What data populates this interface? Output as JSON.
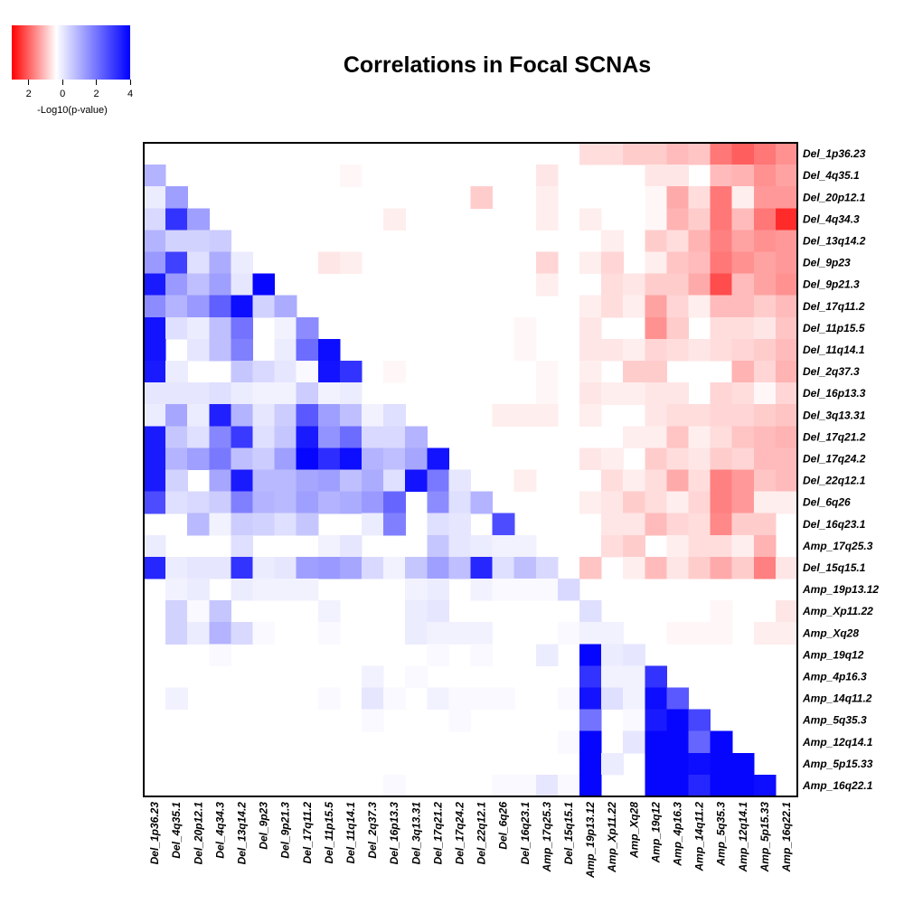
{
  "chart_data": {
    "type": "heatmap",
    "title": "Correlations in Focal SCNAs",
    "legend": {
      "label": "-Log10(p-value)",
      "ticks": [
        "2",
        "0",
        "2",
        "4"
      ],
      "tick_values": [
        -2,
        0,
        2,
        4
      ],
      "range": [
        -3,
        4
      ],
      "colors": {
        "negative": "#ff0000",
        "zero": "#ffffff",
        "positive": "#0000ff"
      }
    },
    "row_labels": [
      "Del_1p36.23",
      "Del_4q35.1",
      "Del_20p12.1",
      "Del_4q34.3",
      "Del_13q14.2",
      "Del_9p23",
      "Del_9p21.3",
      "Del_17q11.2",
      "Del_11p15.5",
      "Del_11q14.1",
      "Del_2q37.3",
      "Del_16p13.3",
      "Del_3q13.31",
      "Del_17q21.2",
      "Del_17q24.2",
      "Del_22q12.1",
      "Del_6q26",
      "Del_16q23.1",
      "Amp_17q25.3",
      "Del_15q15.1",
      "Amp_19p13.12",
      "Amp_Xp11.22",
      "Amp_Xq28",
      "Amp_19q12",
      "Amp_4p16.3",
      "Amp_14q11.2",
      "Amp_5q35.3",
      "Amp_12q14.1",
      "Amp_5p15.33",
      "Amp_16q22.1"
    ],
    "column_labels": [
      "Del_1p36.23",
      "Del_4q35.1",
      "Del_20p12.1",
      "Del_4q34.3",
      "Del_13q14.2",
      "Del_9p23",
      "Del_9p21.3",
      "Del_17q11.2",
      "Del_11p15.5",
      "Del_11q14.1",
      "Del_2q37.3",
      "Del_16p13.3",
      "Del_3q13.31",
      "Del_17q21.2",
      "Del_17q24.2",
      "Del_22q12.1",
      "Del_6q26",
      "Del_16q23.1",
      "Amp_17q25.3",
      "Del_15q15.1",
      "Amp_19p13.12",
      "Amp_Xp11.22",
      "Amp_Xq28",
      "Amp_19q12",
      "Amp_4p16.3",
      "Amp_14q11.2",
      "Amp_5q35.3",
      "Amp_12q14.1",
      "Amp_5p15.33",
      "Amp_16q22.1"
    ],
    "matrix": [
      [
        0,
        0,
        0,
        0,
        0,
        0,
        0,
        0,
        0,
        0,
        0,
        0,
        0,
        0,
        0,
        0,
        0,
        0,
        0,
        0,
        -0.4,
        -0.4,
        -0.6,
        -0.6,
        -0.8,
        -0.7,
        -1.6,
        -1.9,
        -1.6,
        -1.3
      ],
      [
        1.2,
        0,
        0,
        0,
        0,
        0,
        0,
        0,
        0,
        -0.1,
        0,
        0,
        0,
        0,
        0,
        0,
        0,
        0,
        -0.3,
        0,
        0,
        0,
        0,
        -0.3,
        -0.3,
        0,
        -0.8,
        -0.9,
        -1.3,
        -1.1
      ],
      [
        0.3,
        1.5,
        0,
        0,
        0,
        0,
        0,
        0,
        0,
        0,
        0,
        0,
        0,
        0,
        0,
        -0.6,
        0,
        0,
        -0.2,
        0,
        0,
        0,
        0,
        -0.1,
        -1.0,
        -0.4,
        -1.6,
        -0.2,
        -1.2,
        -1.2
      ],
      [
        0.6,
        3.2,
        1.5,
        0,
        0,
        0,
        0,
        0,
        0,
        0,
        0,
        -0.2,
        0,
        0,
        0,
        0,
        0,
        0,
        -0.2,
        0,
        -0.2,
        0,
        0,
        -0.1,
        -0.9,
        -0.6,
        -1.6,
        -0.8,
        -1.6,
        -2.5
      ],
      [
        1.2,
        0.7,
        0.7,
        0.8,
        0,
        0,
        0,
        0,
        0,
        0,
        0,
        0,
        0,
        0,
        0,
        0,
        0,
        0,
        0,
        0,
        0,
        -0.2,
        0,
        -0.6,
        -0.4,
        -0.9,
        -1.5,
        -1.1,
        -1.3,
        -1.2
      ],
      [
        1.6,
        3.0,
        0.5,
        1.3,
        0.3,
        0,
        0,
        0,
        -0.3,
        -0.2,
        0,
        0,
        0,
        0,
        0,
        0,
        0,
        0,
        -0.5,
        0,
        -0.2,
        -0.5,
        0,
        -0.2,
        -0.7,
        -0.8,
        -1.6,
        -1.3,
        -1.1,
        -1.2
      ],
      [
        3.6,
        1.6,
        1.0,
        1.5,
        0.4,
        3.9,
        0,
        0,
        0,
        0,
        0,
        0,
        0,
        0,
        0,
        0,
        0,
        0,
        -0.2,
        0,
        0,
        -0.4,
        -0.3,
        -0.6,
        -0.6,
        -1.0,
        -2.1,
        -0.8,
        -1.1,
        -1.3
      ],
      [
        1.8,
        1.2,
        1.6,
        2.5,
        3.8,
        0.7,
        1.3,
        0,
        0,
        0,
        0,
        0,
        0,
        0,
        0,
        0,
        0,
        0,
        0,
        0,
        -0.2,
        -0.4,
        -0.2,
        -1.1,
        -0.5,
        -0.2,
        -0.8,
        -0.8,
        -0.6,
        -0.8
      ],
      [
        3.7,
        0.5,
        0.3,
        1.0,
        2.2,
        0,
        0.2,
        1.8,
        0,
        0,
        0,
        0,
        0,
        0,
        0,
        0,
        0,
        -0.1,
        0,
        0,
        -0.3,
        0,
        0,
        -1.3,
        -0.6,
        0,
        -0.4,
        -0.4,
        -0.3,
        -0.7
      ],
      [
        3.7,
        0,
        0.4,
        1.0,
        2.0,
        0,
        0.3,
        2.3,
        3.8,
        0,
        0,
        0,
        0,
        0,
        0,
        0,
        0,
        -0.1,
        0,
        0,
        -0.3,
        -0.3,
        -0.2,
        -0.5,
        -0.4,
        -0.3,
        -0.4,
        -0.5,
        -0.6,
        -0.8
      ],
      [
        3.6,
        0.3,
        0,
        0,
        0.9,
        0.6,
        0.4,
        0.1,
        3.7,
        3.2,
        0,
        -0.1,
        0,
        0,
        0,
        0,
        0,
        0,
        -0.1,
        0,
        -0.2,
        0,
        -0.6,
        -0.6,
        0,
        0,
        0,
        -0.9,
        -0.5,
        -0.9
      ],
      [
        0.4,
        0.4,
        0.4,
        0.5,
        0.3,
        0.2,
        0.2,
        0.8,
        0.2,
        0.3,
        0,
        0,
        0,
        0,
        0,
        0,
        0,
        0,
        -0.1,
        0,
        -0.3,
        -0.2,
        -0.2,
        -0.3,
        -0.3,
        0,
        -0.5,
        -0.4,
        -0.1,
        -0.5
      ],
      [
        0.3,
        1.4,
        0.3,
        3.5,
        1.2,
        0.4,
        0.8,
        2.6,
        1.5,
        1.0,
        0.2,
        0.5,
        0,
        0,
        0,
        0,
        -0.2,
        -0.2,
        -0.2,
        0,
        -0.2,
        0,
        0,
        -0.3,
        -0.4,
        -0.4,
        -0.5,
        -0.5,
        -0.6,
        -0.7
      ],
      [
        3.6,
        0.9,
        0.5,
        1.9,
        3.1,
        0.5,
        0.9,
        3.6,
        1.7,
        2.3,
        0.6,
        0.6,
        1.2,
        0,
        0,
        0,
        0,
        0,
        0,
        0,
        0,
        0,
        -0.2,
        -0.2,
        -0.7,
        -0.2,
        -0.4,
        -0.7,
        -0.8,
        -0.9
      ],
      [
        3.6,
        1.2,
        1.5,
        2.1,
        1.0,
        0.8,
        1.5,
        3.9,
        3.3,
        3.8,
        1.2,
        1.0,
        1.4,
        3.7,
        0,
        0,
        0,
        0,
        0,
        0,
        -0.3,
        -0.2,
        0,
        -0.6,
        -0.4,
        -0.3,
        -0.6,
        -0.5,
        -0.8,
        -0.8
      ],
      [
        3.6,
        0.7,
        0,
        1.4,
        3.6,
        1.1,
        1.1,
        1.4,
        1.5,
        1.0,
        1.3,
        0.5,
        3.7,
        2.1,
        0.4,
        0,
        0,
        -0.2,
        0,
        0,
        0,
        -0.4,
        -0.2,
        -0.4,
        -1.0,
        -0.4,
        -1.5,
        -1.2,
        -0.7,
        -0.8
      ],
      [
        2.8,
        0.5,
        0.6,
        0.8,
        2.0,
        1.2,
        1.1,
        1.5,
        1.2,
        1.3,
        1.6,
        2.4,
        0,
        1.8,
        0.5,
        1.2,
        0,
        0,
        0,
        0,
        -0.2,
        -0.3,
        -0.6,
        -0.4,
        -0.2,
        -0.5,
        -1.5,
        -1.2,
        -0.2,
        -0.2
      ],
      [
        0,
        0,
        1.1,
        0.2,
        0.8,
        0.7,
        0.5,
        0.9,
        0,
        0,
        0.3,
        2.0,
        0,
        0.5,
        0.4,
        0,
        2.8,
        0,
        0,
        0,
        0,
        -0.3,
        -0.3,
        -0.8,
        -0.5,
        -0.4,
        -1.4,
        -0.6,
        -0.6,
        0
      ],
      [
        0.3,
        0,
        0,
        0,
        0.5,
        0,
        0,
        0,
        0.2,
        0.4,
        0,
        0,
        0,
        0.9,
        0.4,
        0.3,
        0.2,
        0.2,
        0,
        0,
        0,
        -0.4,
        -0.6,
        0,
        -0.2,
        -0.4,
        -0.4,
        -0.2,
        -0.9,
        0
      ],
      [
        3.4,
        0.3,
        0.4,
        0.4,
        3.2,
        0.3,
        0.4,
        1.5,
        1.6,
        1.4,
        0.6,
        0.2,
        0.9,
        1.5,
        1.0,
        3.4,
        0.5,
        1.0,
        0.6,
        0,
        -0.7,
        0,
        -0.2,
        -0.8,
        -0.3,
        -0.6,
        -1.0,
        -0.6,
        -1.5,
        -0.3
      ],
      [
        0,
        0.2,
        0.3,
        0,
        0.3,
        0.2,
        0.2,
        0.2,
        0,
        0,
        0,
        0,
        0.2,
        0.3,
        0,
        0.2,
        0.1,
        0.1,
        0.1,
        0.6,
        0,
        0,
        0,
        0,
        0,
        0,
        0,
        0,
        0,
        0
      ],
      [
        0,
        0.7,
        0.1,
        0.9,
        0,
        0,
        0,
        0,
        0.2,
        0,
        0,
        0,
        0.3,
        0.4,
        0,
        0,
        0,
        0,
        0,
        0,
        0.5,
        0,
        0,
        0,
        0,
        0,
        -0.1,
        0,
        0,
        -0.3
      ],
      [
        0,
        0.7,
        0.3,
        1.2,
        0.6,
        0.1,
        0,
        0,
        0.1,
        0,
        0,
        0,
        0.3,
        0.2,
        0.2,
        0.2,
        0,
        0,
        0,
        0.1,
        0.2,
        0.2,
        0,
        0,
        -0.1,
        -0.1,
        -0.1,
        0,
        -0.2,
        -0.2
      ],
      [
        0,
        0,
        0,
        0.1,
        0,
        0,
        0,
        0,
        0,
        0,
        0,
        0,
        0,
        0.1,
        0,
        0.1,
        0,
        0,
        0.3,
        0,
        3.9,
        0.3,
        0.4,
        0,
        0,
        0,
        0,
        0,
        0,
        0
      ],
      [
        0,
        0,
        0,
        0,
        0,
        0,
        0,
        0,
        0,
        0,
        0.2,
        0,
        0.1,
        0,
        0,
        0,
        0,
        0,
        0,
        0,
        3.2,
        0.2,
        0.2,
        3.2,
        0,
        0,
        0,
        0,
        0,
        0
      ],
      [
        0,
        0.2,
        0,
        0,
        0,
        0,
        0,
        0,
        0.1,
        0,
        0.4,
        0.1,
        0,
        0.2,
        0.1,
        0.1,
        0.1,
        0,
        0,
        0.1,
        3.7,
        0.5,
        0.2,
        3.8,
        2.6,
        0,
        0,
        0,
        0,
        0
      ],
      [
        0,
        0,
        0,
        0,
        0,
        0,
        0,
        0,
        0,
        0,
        0.1,
        0,
        0,
        0,
        0.1,
        0,
        0,
        0,
        0,
        0,
        2.2,
        0,
        0.1,
        3.6,
        3.9,
        2.9,
        0,
        0,
        0,
        0
      ],
      [
        0,
        0,
        0,
        0,
        0,
        0,
        0,
        0,
        0,
        0,
        0,
        0,
        0,
        0,
        0,
        0,
        0,
        0,
        0,
        0.1,
        3.9,
        0,
        0.4,
        3.9,
        3.9,
        2.4,
        3.9,
        0,
        0,
        0
      ],
      [
        0,
        0,
        0,
        0,
        0,
        0,
        0,
        0,
        0,
        0,
        0,
        0,
        0,
        0,
        0,
        0,
        0,
        0,
        0,
        0,
        3.9,
        0.3,
        0,
        3.9,
        3.9,
        3.8,
        3.9,
        3.9,
        0,
        0
      ],
      [
        0,
        0,
        0,
        0,
        0,
        0,
        0,
        0,
        0,
        0,
        0,
        0.1,
        0,
        0,
        0,
        0,
        0.1,
        0.1,
        0.4,
        0.1,
        3.9,
        0,
        0,
        3.9,
        3.9,
        3.4,
        3.9,
        3.9,
        3.8,
        0
      ]
    ]
  }
}
